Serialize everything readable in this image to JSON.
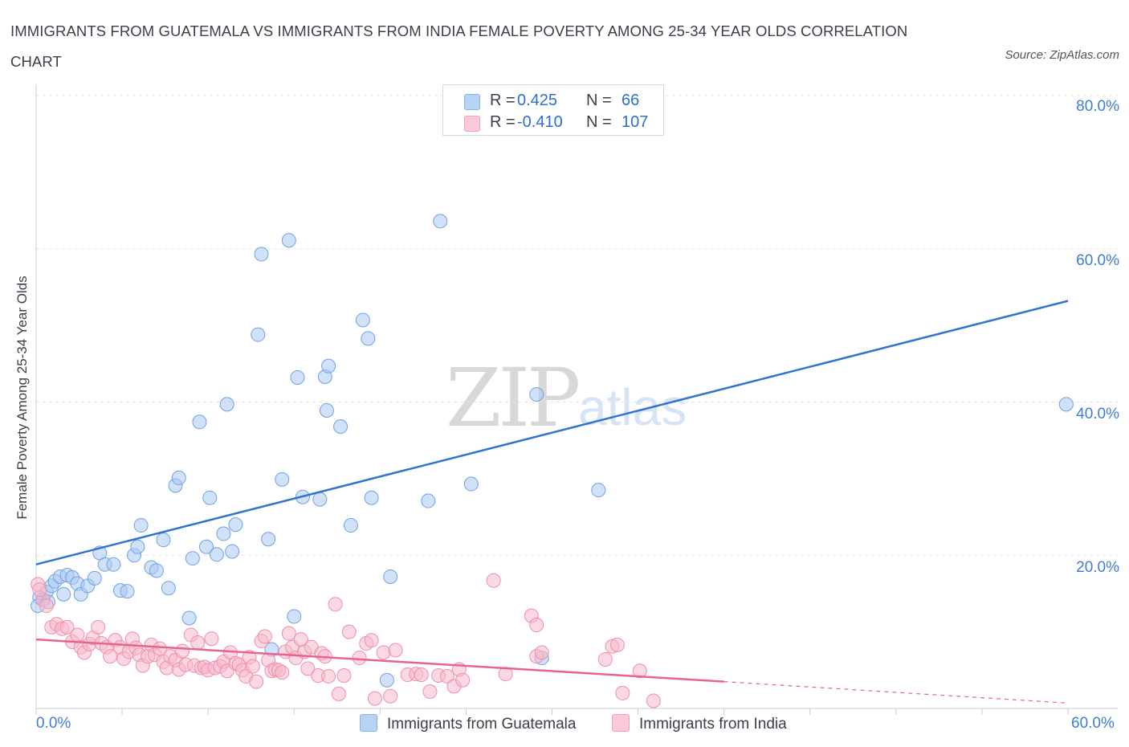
{
  "title": "IMMIGRANTS FROM GUATEMALA VS IMMIGRANTS FROM INDIA FEMALE POVERTY AMONG 25-34 YEAR OLDS CORRELATION CHART",
  "source": "Source: ZipAtlas.com",
  "watermark": {
    "zip": "ZIP",
    "atlas": "atlas"
  },
  "legend": {
    "r_label": "R =",
    "n_label": "N =",
    "guatemala": {
      "r": "0.425",
      "n": "66"
    },
    "india": {
      "r": "-0.410",
      "n": "107"
    }
  },
  "colors": {
    "guatemala": "#7fb2ee",
    "guatemala_line": "#2f74d0",
    "india": "#f4a0b8",
    "india_line": "#e8648f",
    "accent_text": "#3f7dd4"
  },
  "chart_data": {
    "type": "scatter",
    "xlabel": "",
    "ylabel": "Female Poverty Among 25-34 Year Olds",
    "xlim": [
      0,
      60
    ],
    "ylim": [
      0,
      80
    ],
    "x_tick_labels": [
      "0.0%",
      "60.0%"
    ],
    "y_tick_labels": [
      "20.0%",
      "40.0%",
      "60.0%",
      "80.0%"
    ],
    "y_ticks": [
      20,
      40,
      60,
      80
    ],
    "grid": true,
    "legend_position": "top-center",
    "series": [
      {
        "name": "Immigrants from Guatemala",
        "points": [
          [
            0.2,
            14.5
          ],
          [
            0.4,
            14.2
          ],
          [
            0.6,
            15.2
          ],
          [
            0.7,
            13.9
          ],
          [
            0.9,
            16.0
          ],
          [
            1.1,
            16.6
          ],
          [
            1.4,
            17.2
          ],
          [
            1.6,
            14.9
          ],
          [
            1.8,
            17.4
          ],
          [
            2.1,
            17.1
          ],
          [
            2.4,
            16.3
          ],
          [
            2.6,
            14.9
          ],
          [
            3.0,
            16.0
          ],
          [
            3.4,
            17.0
          ],
          [
            3.7,
            20.3
          ],
          [
            4.0,
            18.8
          ],
          [
            4.5,
            18.8
          ],
          [
            4.9,
            15.4
          ],
          [
            5.7,
            20.0
          ],
          [
            5.3,
            15.3
          ],
          [
            5.9,
            21.1
          ],
          [
            6.1,
            23.9
          ],
          [
            6.7,
            18.4
          ],
          [
            7.4,
            22.0
          ],
          [
            7.0,
            18.0
          ],
          [
            7.7,
            15.7
          ],
          [
            8.1,
            29.1
          ],
          [
            8.3,
            30.1
          ],
          [
            8.9,
            11.8
          ],
          [
            9.1,
            19.6
          ],
          [
            9.5,
            37.4
          ],
          [
            9.9,
            21.1
          ],
          [
            10.1,
            27.5
          ],
          [
            10.5,
            20.1
          ],
          [
            10.9,
            22.8
          ],
          [
            11.1,
            39.7
          ],
          [
            11.4,
            20.5
          ],
          [
            11.6,
            24.0
          ],
          [
            12.9,
            48.8
          ],
          [
            13.1,
            59.3
          ],
          [
            13.5,
            22.1
          ],
          [
            13.7,
            7.7
          ],
          [
            14.3,
            29.9
          ],
          [
            14.7,
            61.1
          ],
          [
            15.0,
            12.0
          ],
          [
            15.2,
            43.2
          ],
          [
            15.5,
            27.6
          ],
          [
            16.5,
            27.3
          ],
          [
            16.8,
            43.3
          ],
          [
            17.0,
            44.7
          ],
          [
            16.9,
            38.9
          ],
          [
            17.7,
            36.8
          ],
          [
            18.3,
            23.9
          ],
          [
            19.0,
            50.7
          ],
          [
            19.3,
            48.3
          ],
          [
            19.5,
            27.5
          ],
          [
            20.4,
            3.7
          ],
          [
            20.6,
            17.2
          ],
          [
            22.8,
            27.1
          ],
          [
            23.5,
            63.6
          ],
          [
            25.3,
            29.3
          ],
          [
            29.1,
            41.0
          ],
          [
            29.4,
            6.6
          ],
          [
            32.7,
            28.5
          ],
          [
            59.9,
            39.7
          ],
          [
            0.1,
            13.4
          ]
        ]
      },
      {
        "name": "Immigrants from India",
        "points": [
          [
            0.1,
            16.2
          ],
          [
            0.4,
            14.2
          ],
          [
            0.6,
            13.4
          ],
          [
            0.9,
            10.6
          ],
          [
            1.2,
            11.0
          ],
          [
            1.5,
            10.4
          ],
          [
            1.8,
            10.6
          ],
          [
            2.1,
            8.7
          ],
          [
            2.4,
            9.6
          ],
          [
            2.6,
            8.0
          ],
          [
            2.8,
            7.3
          ],
          [
            3.1,
            8.4
          ],
          [
            3.3,
            9.2
          ],
          [
            3.6,
            10.6
          ],
          [
            3.8,
            8.5
          ],
          [
            4.1,
            8.0
          ],
          [
            4.3,
            6.8
          ],
          [
            4.6,
            8.9
          ],
          [
            4.9,
            8.0
          ],
          [
            5.1,
            6.5
          ],
          [
            5.4,
            7.4
          ],
          [
            5.6,
            9.1
          ],
          [
            5.8,
            7.9
          ],
          [
            6.0,
            7.0
          ],
          [
            6.2,
            5.6
          ],
          [
            6.5,
            6.8
          ],
          [
            6.7,
            8.3
          ],
          [
            6.9,
            7.0
          ],
          [
            7.2,
            7.8
          ],
          [
            7.4,
            6.1
          ],
          [
            7.6,
            5.3
          ],
          [
            7.8,
            6.8
          ],
          [
            8.1,
            6.3
          ],
          [
            8.3,
            5.1
          ],
          [
            8.5,
            7.5
          ],
          [
            8.7,
            5.7
          ],
          [
            9.0,
            9.6
          ],
          [
            9.2,
            5.6
          ],
          [
            9.4,
            8.6
          ],
          [
            9.6,
            5.3
          ],
          [
            9.8,
            5.4
          ],
          [
            10.0,
            5.0
          ],
          [
            10.2,
            9.1
          ],
          [
            10.4,
            5.3
          ],
          [
            10.7,
            5.5
          ],
          [
            10.9,
            6.1
          ],
          [
            11.1,
            4.9
          ],
          [
            11.3,
            7.3
          ],
          [
            11.6,
            5.9
          ],
          [
            11.8,
            5.7
          ],
          [
            12.0,
            5.0
          ],
          [
            12.2,
            4.2
          ],
          [
            12.4,
            6.7
          ],
          [
            12.6,
            5.5
          ],
          [
            12.8,
            3.5
          ],
          [
            13.1,
            8.8
          ],
          [
            13.3,
            9.4
          ],
          [
            13.5,
            6.3
          ],
          [
            13.7,
            4.9
          ],
          [
            13.9,
            5.1
          ],
          [
            14.1,
            5.0
          ],
          [
            14.3,
            4.7
          ],
          [
            14.5,
            7.4
          ],
          [
            14.7,
            9.8
          ],
          [
            14.9,
            8.0
          ],
          [
            15.1,
            6.6
          ],
          [
            15.4,
            9.0
          ],
          [
            15.6,
            7.4
          ],
          [
            15.8,
            5.2
          ],
          [
            16.0,
            8.0
          ],
          [
            16.4,
            4.3
          ],
          [
            16.6,
            7.2
          ],
          [
            16.8,
            6.8
          ],
          [
            17.0,
            4.2
          ],
          [
            17.4,
            13.6
          ],
          [
            17.6,
            1.9
          ],
          [
            17.9,
            4.3
          ],
          [
            18.2,
            10.0
          ],
          [
            18.8,
            6.6
          ],
          [
            19.2,
            8.5
          ],
          [
            19.5,
            8.9
          ],
          [
            19.7,
            1.3
          ],
          [
            20.2,
            7.3
          ],
          [
            20.6,
            1.6
          ],
          [
            20.9,
            7.6
          ],
          [
            21.6,
            4.4
          ],
          [
            22.1,
            4.5
          ],
          [
            22.4,
            4.4
          ],
          [
            22.9,
            2.2
          ],
          [
            23.4,
            4.3
          ],
          [
            23.9,
            4.2
          ],
          [
            24.3,
            2.9
          ],
          [
            24.6,
            5.1
          ],
          [
            24.8,
            3.7
          ],
          [
            26.6,
            16.7
          ],
          [
            27.3,
            4.5
          ],
          [
            29.1,
            6.8
          ],
          [
            29.4,
            7.3
          ],
          [
            28.8,
            12.1
          ],
          [
            29.1,
            10.9
          ],
          [
            33.1,
            6.4
          ],
          [
            33.5,
            8.1
          ],
          [
            33.8,
            8.3
          ],
          [
            34.1,
            2.0
          ],
          [
            35.1,
            4.9
          ],
          [
            35.9,
            1.0
          ],
          [
            0.2,
            15.5
          ]
        ]
      }
    ],
    "trend_lines": [
      {
        "series": "Immigrants from Guatemala",
        "x": [
          0,
          60
        ],
        "y": [
          18.8,
          53.2
        ]
      },
      {
        "series": "Immigrants from India",
        "x": [
          0,
          40
        ],
        "y": [
          9.0,
          3.5
        ],
        "dashed_extension_to_x": 60,
        "dashed_end_y": 0.7
      }
    ]
  }
}
